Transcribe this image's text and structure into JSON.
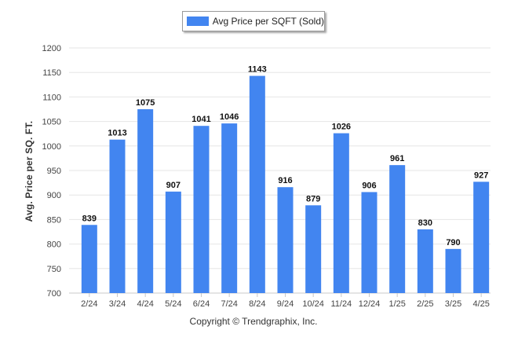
{
  "legend": {
    "label": "Avg Price per SQFT (Sold)"
  },
  "copyright": "Copyright © Trendgraphix, Inc.",
  "colors": {
    "bar": "#4285f0",
    "grid": "#e6e6e6",
    "axis": "#c8c8c8"
  },
  "chart_data": {
    "type": "bar",
    "title": "",
    "xlabel": "",
    "ylabel": "Avg. Price per SQ. FT.",
    "categories": [
      "2/24",
      "3/24",
      "4/24",
      "5/24",
      "6/24",
      "7/24",
      "8/24",
      "9/24",
      "10/24",
      "11/24",
      "12/24",
      "1/25",
      "2/25",
      "3/25",
      "4/25"
    ],
    "series": [
      {
        "name": "Avg Price per SQFT (Sold)",
        "values": [
          839,
          1013,
          1075,
          907,
          1041,
          1046,
          1143,
          916,
          879,
          1026,
          906,
          961,
          830,
          790,
          927
        ]
      }
    ],
    "ylim": [
      700,
      1200
    ],
    "yticks": [
      700,
      750,
      800,
      850,
      900,
      950,
      1000,
      1050,
      1100,
      1150,
      1200
    ],
    "grid": true,
    "legend_position": "top-center",
    "data_labels": true
  }
}
